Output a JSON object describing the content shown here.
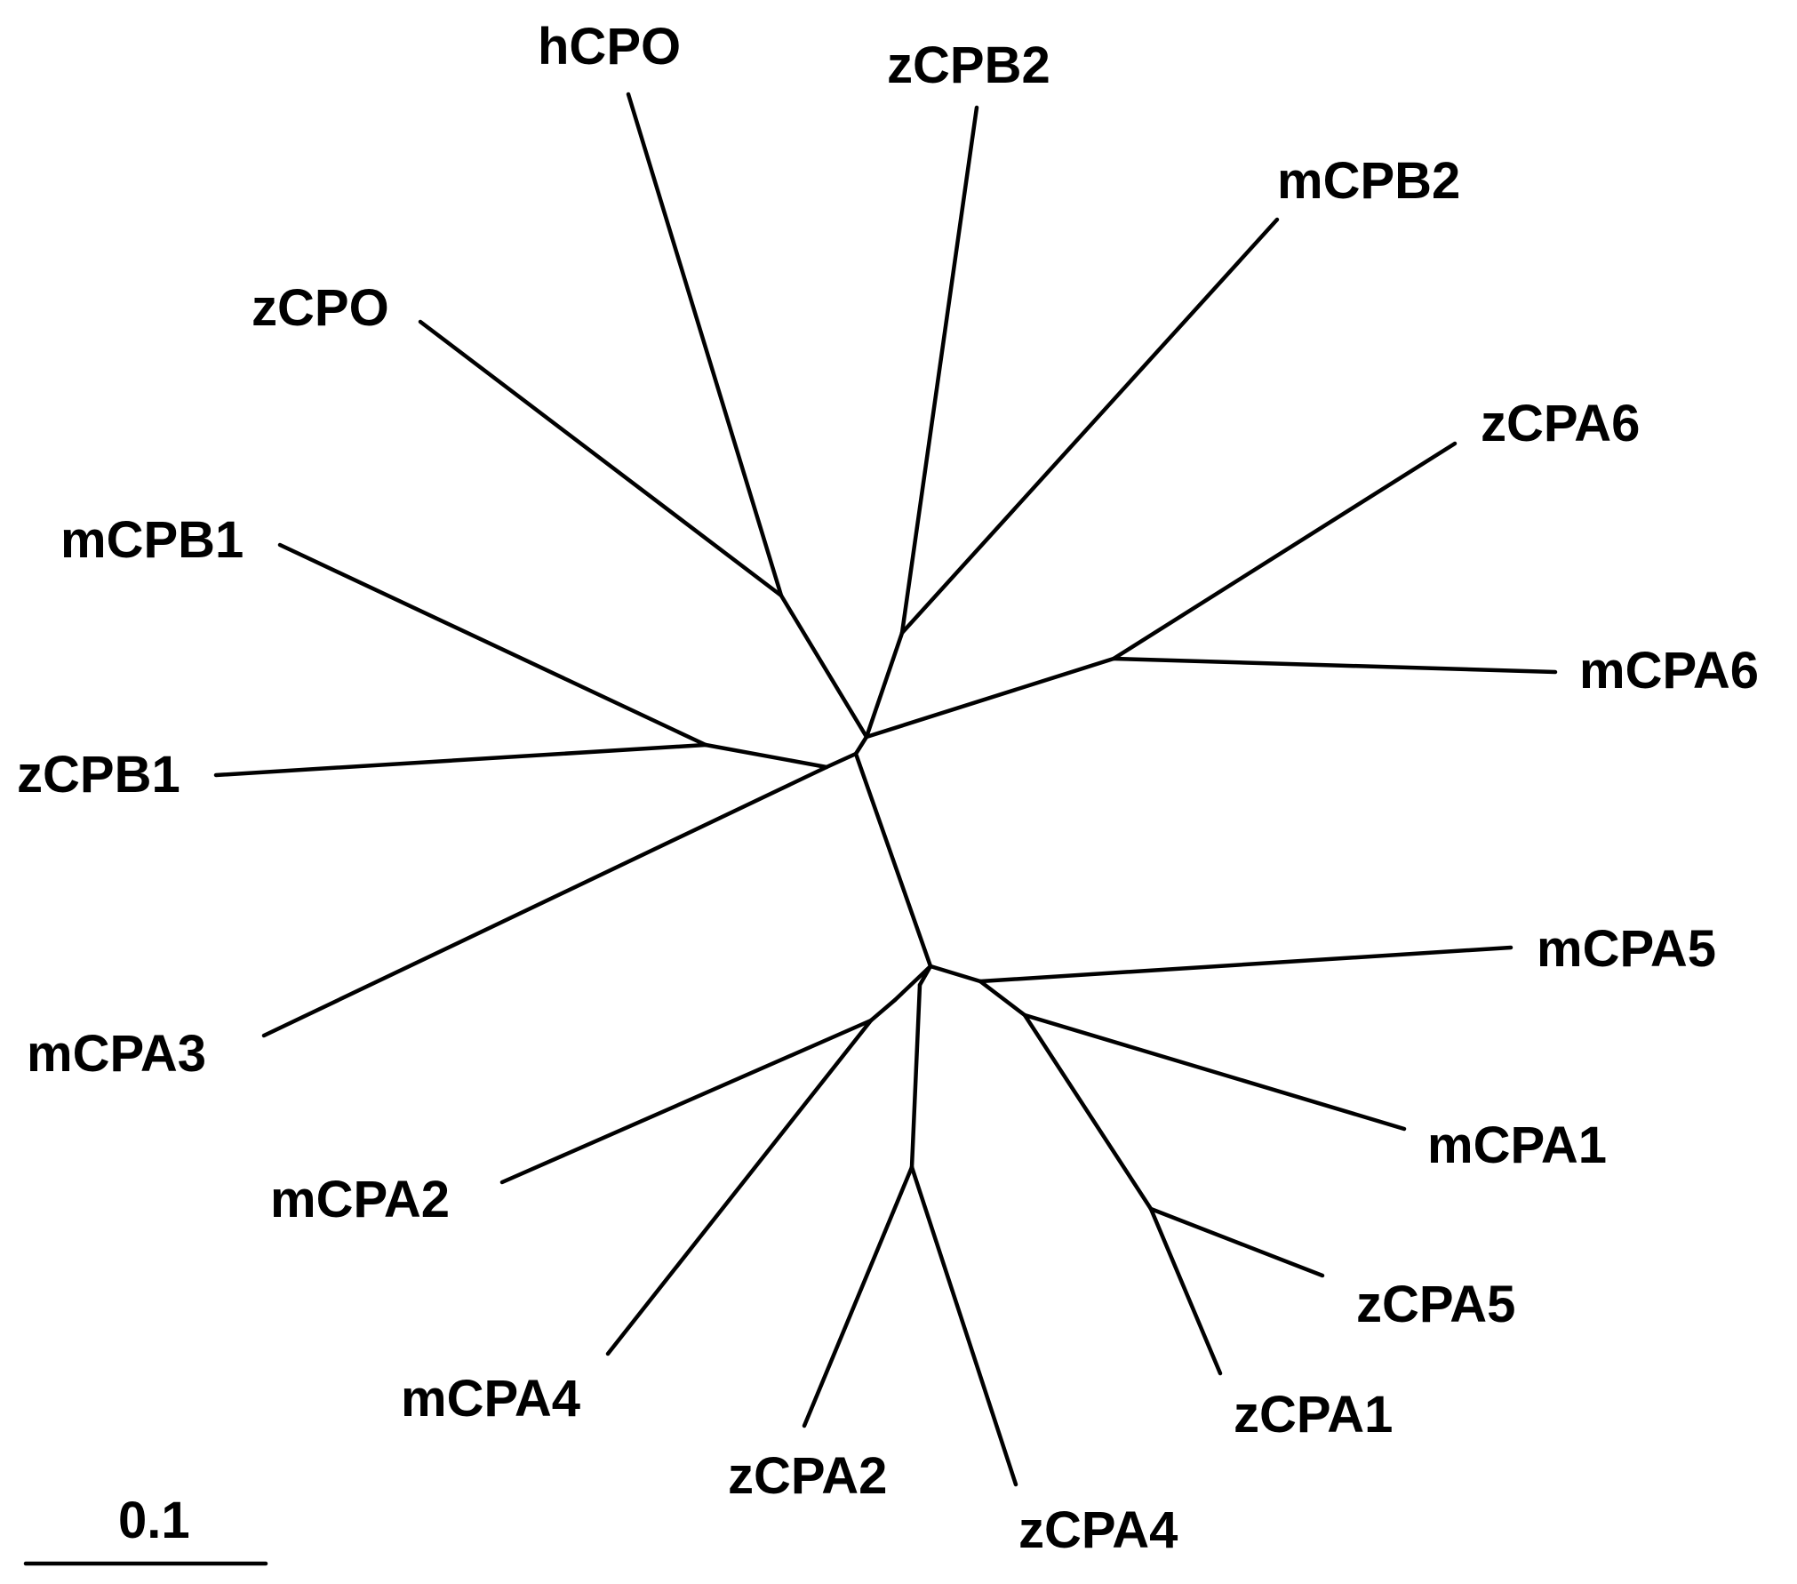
{
  "tree": {
    "type": "unrooted phylogenetic tree",
    "leaves": {
      "hCPO": "hCPO",
      "zCPB2": "zCPB2",
      "mCPB2": "mCPB2",
      "zCPO": "zCPO",
      "zCPA6": "zCPA6",
      "mCPB1": "mCPB1",
      "mCPA6": "mCPA6",
      "zCPB1": "zCPB1",
      "mCPA5": "mCPA5",
      "mCPA3": "mCPA3",
      "mCPA1": "mCPA1",
      "mCPA2": "mCPA2",
      "zCPA5": "zCPA5",
      "mCPA4": "mCPA4",
      "zCPA1": "zCPA1",
      "zCPA2": "zCPA2",
      "zCPA4": "zCPA4"
    },
    "scale_bar": {
      "label": "0.1",
      "value": 0.1
    },
    "line_color": "#000000"
  }
}
